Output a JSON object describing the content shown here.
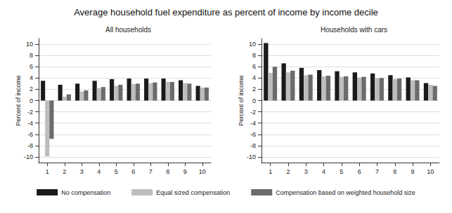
{
  "title": "Average household fuel expenditure as percent of income by income decile",
  "legend": "bottom",
  "chart_data": [
    {
      "type": "bar",
      "title": "All households",
      "ylabel": "Percent of income",
      "categories": [
        "1",
        "2",
        "3",
        "4",
        "5",
        "6",
        "7",
        "8",
        "9",
        "10"
      ],
      "series": [
        {
          "name": "No compensation",
          "color": "#1a1a1a",
          "values": [
            3.5,
            2.8,
            3.0,
            3.5,
            3.8,
            3.9,
            3.9,
            3.9,
            3.6,
            2.6
          ]
        },
        {
          "name": "Equal sized compensation",
          "color": "#bdbdbd",
          "values": [
            -9.9,
            0.7,
            1.6,
            2.2,
            2.6,
            2.9,
            3.1,
            3.3,
            3.1,
            2.3
          ]
        },
        {
          "name": "Compensation based on weighted household size",
          "color": "#6b6b6b",
          "values": [
            -6.8,
            1.1,
            1.8,
            2.4,
            2.8,
            3.0,
            3.2,
            3.3,
            3.0,
            2.3
          ]
        }
      ],
      "ylim": [
        -11,
        11
      ],
      "yticks": [
        -10,
        -8,
        -6,
        -4,
        -2,
        0,
        2,
        4,
        6,
        8,
        10
      ],
      "grid": true
    },
    {
      "type": "bar",
      "title": "Households with cars",
      "ylabel": "Percent of income",
      "categories": [
        "1",
        "2",
        "3",
        "4",
        "5",
        "6",
        "7",
        "8",
        "9",
        "10"
      ],
      "series": [
        {
          "name": "No compensation",
          "color": "#1a1a1a",
          "values": [
            10.2,
            6.6,
            5.8,
            5.4,
            5.2,
            5.0,
            4.8,
            4.5,
            4.1,
            3.1
          ]
        },
        {
          "name": "Equal sized compensation",
          "color": "#bdbdbd",
          "values": [
            4.9,
            5.0,
            4.5,
            4.3,
            4.2,
            4.1,
            4.0,
            3.8,
            3.6,
            2.8
          ]
        },
        {
          "name": "Compensation based on weighted household size",
          "color": "#6b6b6b",
          "values": [
            6.0,
            5.3,
            4.6,
            4.4,
            4.3,
            4.2,
            4.0,
            3.9,
            3.6,
            2.6
          ]
        }
      ],
      "ylim": [
        -11,
        11
      ],
      "yticks": [
        -10,
        -8,
        -6,
        -4,
        -2,
        0,
        2,
        4,
        6,
        8,
        10
      ],
      "grid": true
    }
  ]
}
